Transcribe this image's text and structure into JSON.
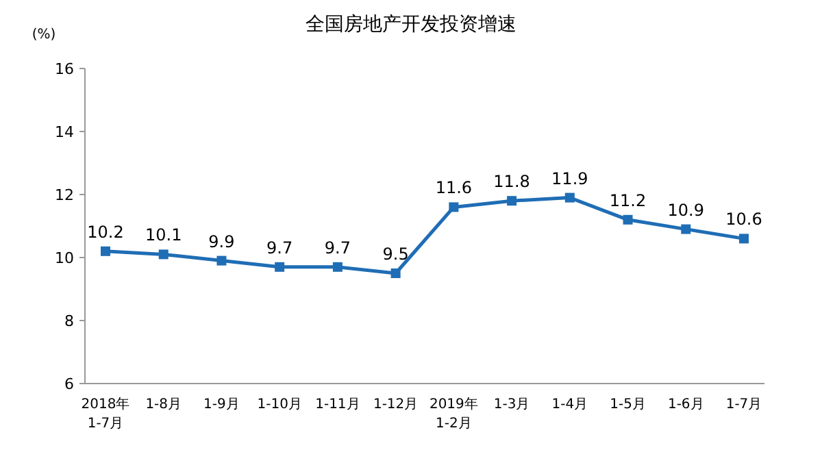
{
  "chart_data": {
    "type": "line",
    "title": "全国房地产开发投资增速",
    "ylabel": "(%)",
    "categories": [
      "2018年\n1-7月",
      "1-8月",
      "1-9月",
      "1-10月",
      "1-11月",
      "1-12月",
      "2019年\n1-2月",
      "1-3月",
      "1-4月",
      "1-5月",
      "1-6月",
      "1-7月"
    ],
    "series": [
      {
        "color": "#1f6db5",
        "values": [
          10.2,
          10.1,
          9.9,
          9.7,
          9.7,
          9.5,
          11.6,
          11.8,
          11.9,
          11.2,
          10.9,
          10.6
        ]
      }
    ],
    "ylim": [
      6,
      16
    ],
    "yticks": [
      6,
      8,
      10,
      12,
      14,
      16
    ],
    "grid": false,
    "marker": "square",
    "line_style": "solid",
    "data_labels": true
  }
}
